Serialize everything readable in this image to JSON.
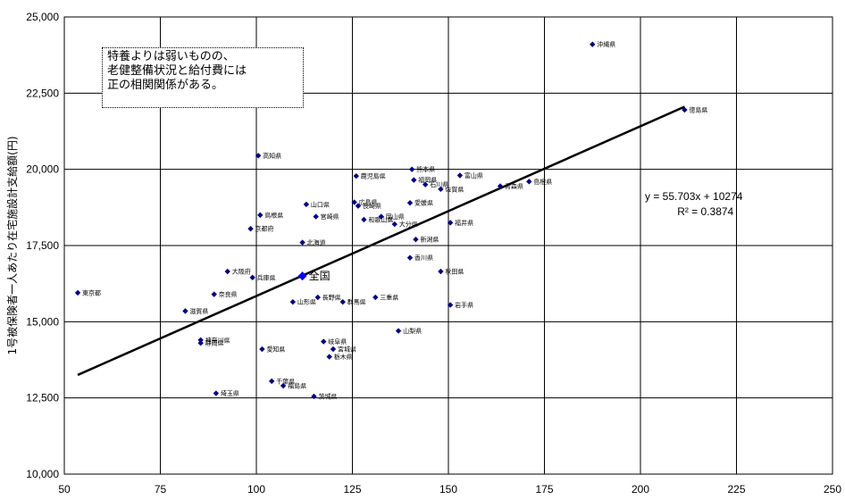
{
  "chart_data": {
    "type": "scatter",
    "title": "",
    "xlabel": "",
    "ylabel": "1号被保険者一人あたり在宅施設計支給額(円)",
    "xlim": [
      50,
      250
    ],
    "ylim": [
      10000,
      25000
    ],
    "x_ticks": [
      "50",
      "75",
      "100",
      "125",
      "150",
      "175",
      "200",
      "225",
      "250"
    ],
    "y_ticks": [
      "10,000",
      "12,500",
      "15,000",
      "17,500",
      "20,000",
      "22,500",
      "25,000"
    ],
    "grid": true,
    "marker_color": "#000080",
    "points": [
      {
        "label": "沖縄県",
        "x": 187.5,
        "y": 24100
      },
      {
        "label": "徳島県",
        "x": 211.5,
        "y": 21950
      },
      {
        "label": "高知県",
        "x": 100.5,
        "y": 20450
      },
      {
        "label": "熊本県",
        "x": 140.5,
        "y": 20000
      },
      {
        "label": "富山県",
        "x": 153,
        "y": 19800
      },
      {
        "label": "鹿児島県",
        "x": 126,
        "y": 19780
      },
      {
        "label": "福岡県",
        "x": 141,
        "y": 19650
      },
      {
        "label": "島根県",
        "x": 171,
        "y": 19600
      },
      {
        "label": "石川県",
        "x": 144,
        "y": 19500
      },
      {
        "label": "青森県",
        "x": 163.5,
        "y": 19450
      },
      {
        "label": "佐賀県",
        "x": 148,
        "y": 19350
      },
      {
        "label": "広島県",
        "x": 125.5,
        "y": 18920
      },
      {
        "label": "山口県",
        "x": 113,
        "y": 18850
      },
      {
        "label": "長崎県",
        "x": 126.5,
        "y": 18800
      },
      {
        "label": "愛媛県",
        "x": 140,
        "y": 18900
      },
      {
        "label": "鳥根県",
        "x": 101,
        "y": 18500
      },
      {
        "label": "宮崎県",
        "x": 115.5,
        "y": 18450
      },
      {
        "label": "岡山県",
        "x": 132.5,
        "y": 18450
      },
      {
        "label": "和歌山県",
        "x": 128,
        "y": 18350
      },
      {
        "label": "大分県",
        "x": 136,
        "y": 18200
      },
      {
        "label": "福井県",
        "x": 150.5,
        "y": 18250
      },
      {
        "label": "京都府",
        "x": 98.5,
        "y": 18050
      },
      {
        "label": "新潟県",
        "x": 141.5,
        "y": 17700
      },
      {
        "label": "北海道",
        "x": 112,
        "y": 17600
      },
      {
        "label": "香川県",
        "x": 140,
        "y": 17100
      },
      {
        "label": "大阪府",
        "x": 92.5,
        "y": 16650
      },
      {
        "label": "秋田県",
        "x": 148,
        "y": 16650
      },
      {
        "label": "兵庫県",
        "x": 99,
        "y": 16450
      },
      {
        "label": "東京都",
        "x": 53.5,
        "y": 15950
      },
      {
        "label": "奈良県",
        "x": 89,
        "y": 15900
      },
      {
        "label": "長野県",
        "x": 116,
        "y": 15800
      },
      {
        "label": "三重県",
        "x": 131,
        "y": 15800
      },
      {
        "label": "山形県",
        "x": 109.5,
        "y": 15650
      },
      {
        "label": "群馬県",
        "x": 122.5,
        "y": 15650
      },
      {
        "label": "岩手県",
        "x": 150.5,
        "y": 15550
      },
      {
        "label": "滋賀県",
        "x": 81.5,
        "y": 15350
      },
      {
        "label": "山梨県",
        "x": 137,
        "y": 14700
      },
      {
        "label": "神奈川県",
        "x": 85.5,
        "y": 14400
      },
      {
        "label": "静岡県",
        "x": 85.5,
        "y": 14300
      },
      {
        "label": "岐阜県",
        "x": 117.5,
        "y": 14350
      },
      {
        "label": "宮城県",
        "x": 120,
        "y": 14100
      },
      {
        "label": "愛知県",
        "x": 101.5,
        "y": 14100
      },
      {
        "label": "栃木県",
        "x": 119,
        "y": 13850
      },
      {
        "label": "千葉県",
        "x": 104,
        "y": 13050
      },
      {
        "label": "福島県",
        "x": 107,
        "y": 12900
      },
      {
        "label": "埼玉県",
        "x": 89.5,
        "y": 12650
      },
      {
        "label": "茨城県",
        "x": 115,
        "y": 12550
      }
    ],
    "highlight": {
      "label": "全国",
      "x": 112,
      "y": 16500,
      "color": "#0000ff"
    },
    "trendline": {
      "slope": 55.703,
      "intercept": 10274,
      "x_range": [
        53.5,
        211.5
      ],
      "color": "#000000"
    },
    "equation_text": "y = 55.703x + 10274",
    "r2_text": "R² = 0.3874"
  },
  "annotation": {
    "lines": [
      "特養よりは弱いものの、",
      "老健整備状況と給付費には",
      "正の相関関係がある。"
    ]
  }
}
